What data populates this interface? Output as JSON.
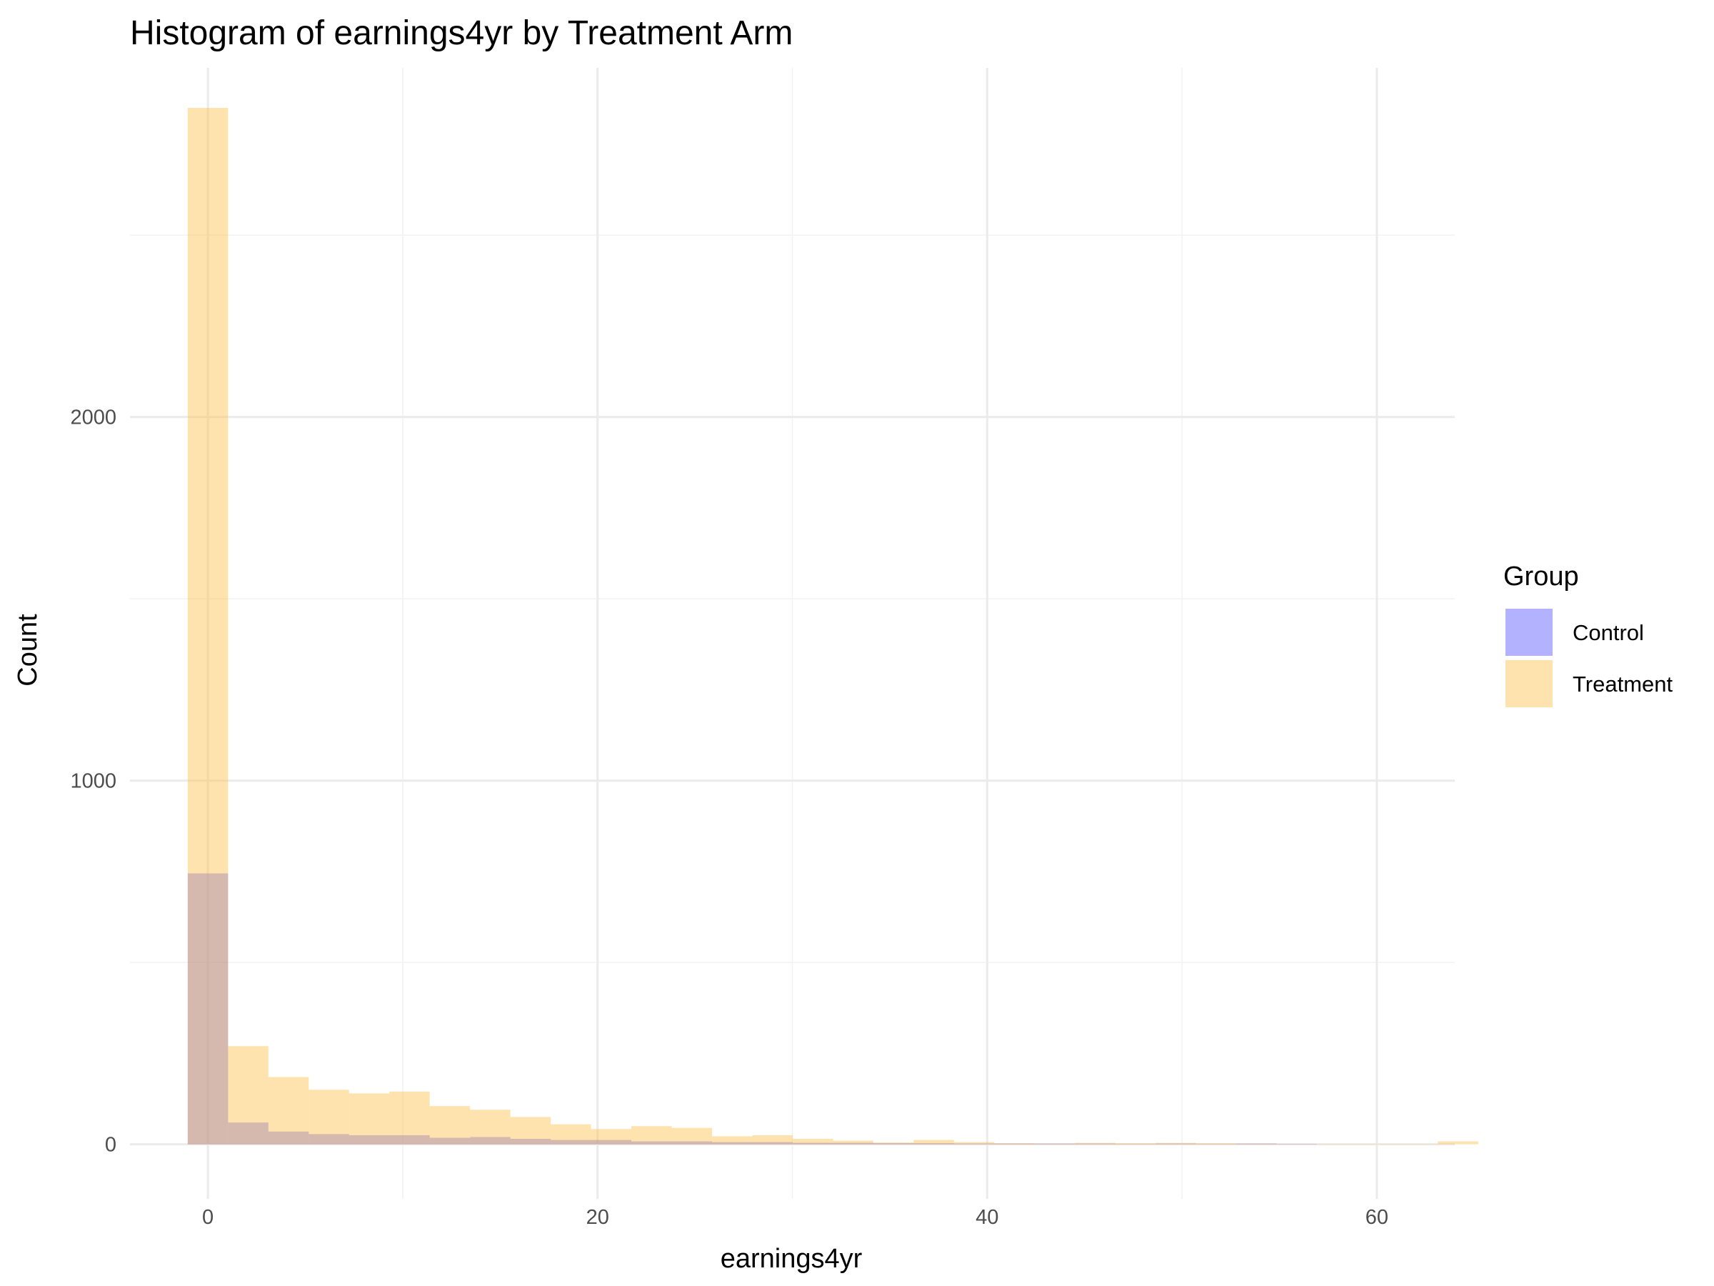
{
  "chart_data": {
    "type": "bar",
    "subtype": "histogram-overlay",
    "title": "Histogram of earnings4yr by Treatment Arm",
    "xlabel": "earnings4yr",
    "ylabel": "Count",
    "xlim": [
      -4,
      64
    ],
    "ylim": [
      -150,
      2960
    ],
    "x_ticks": [
      0,
      20,
      40,
      60
    ],
    "y_ticks": [
      0,
      1000,
      2000
    ],
    "x_tick_labels": [
      "0",
      "20",
      "40",
      "60"
    ],
    "y_tick_labels": [
      "0",
      "1000",
      "2000"
    ],
    "bin_width": 2.07,
    "bin_start": -1.035,
    "grid": true,
    "legend": {
      "title": "Group",
      "position": "right"
    },
    "series": [
      {
        "name": "Control",
        "color": "#6666ff",
        "opacity": 0.5,
        "values": [
          745,
          60,
          35,
          28,
          25,
          25,
          18,
          20,
          15,
          12,
          12,
          8,
          8,
          6,
          6,
          4,
          4,
          3,
          3,
          2,
          2,
          2,
          2,
          1,
          2,
          1,
          2,
          1,
          0,
          0,
          0,
          0
        ]
      },
      {
        "name": "Treatment",
        "color": "#ffc04d",
        "opacity": 0.45,
        "values": [
          2850,
          270,
          185,
          150,
          140,
          145,
          105,
          95,
          75,
          55,
          42,
          50,
          45,
          22,
          25,
          15,
          10,
          5,
          12,
          6,
          3,
          2,
          4,
          3,
          4,
          3,
          2,
          1,
          1,
          1,
          1,
          8
        ]
      }
    ]
  }
}
